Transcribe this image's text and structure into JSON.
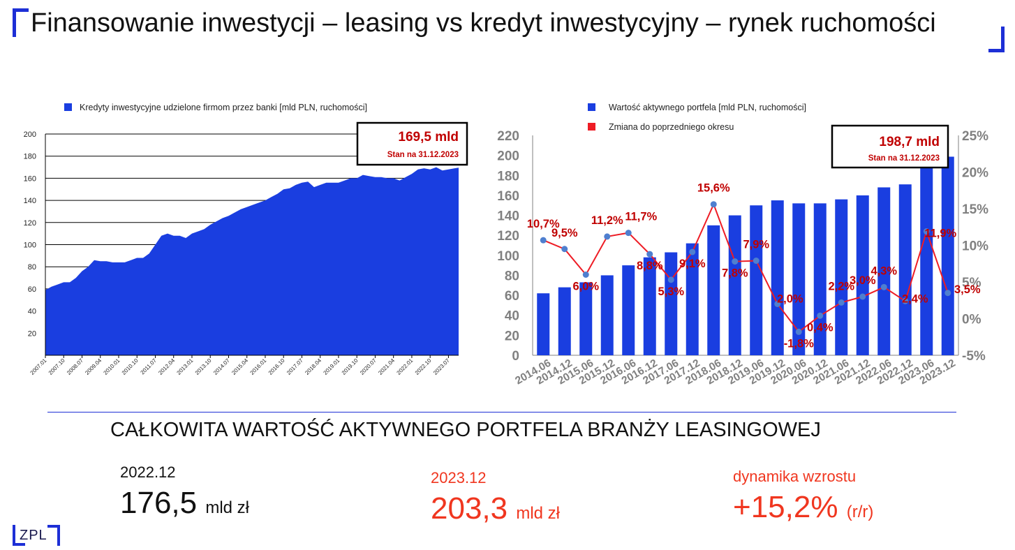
{
  "page": {
    "title": "Finansowanie inwestycji – leasing vs kredyt inwestycyjny – rynek ruchomości",
    "subtitle": "CAŁKOWITA WARTOŚĆ AKTYWNEGO PORTFELA BRANŻY LEASINGOWEJ",
    "logo_text": "ZPL",
    "accent_color": "#1d2fd6"
  },
  "kpis": [
    {
      "period": "2022.12",
      "value": "176,5",
      "unit": "mld zł",
      "color": "#111111"
    },
    {
      "period": "2023.12",
      "value": "203,3",
      "unit": "mld zł",
      "color": "#f0361f"
    },
    {
      "period": "dynamika wzrostu",
      "value": "+15,2%",
      "unit": "(r/r)",
      "color": "#f0361f"
    }
  ],
  "chart_data": [
    {
      "type": "area",
      "legend": [
        "Kredyty inwestycyjne udzielone firmom przez banki [mld PLN, ruchomości]"
      ],
      "callout": {
        "value": "169,5 mld",
        "note": "Stan na 31.12.2023"
      },
      "x_ticks": [
        "2007.01",
        "2007.10",
        "2008.07",
        "2009.04",
        "2010.01",
        "2010.10",
        "2011.07",
        "2012.04",
        "2013.01",
        "2013.10",
        "2014.07",
        "2015.04",
        "2016.01",
        "2016.10",
        "2017.07",
        "2018.04",
        "2019.01",
        "2019.10",
        "2020.07",
        "2021.04",
        "2022.01",
        "2022.10",
        "2023.07"
      ],
      "y_ticks": [
        "20",
        "40",
        "60",
        "80",
        "100",
        "120",
        "140",
        "160",
        "180",
        "200"
      ],
      "ylim": [
        0,
        200
      ],
      "grid": true,
      "color": "#1a3ee0",
      "series": [
        {
          "name": "Kredyty inwestycyjne udzielone firmom przez banki [mld PLN, ruchomości]",
          "x": [
            "2007.01",
            "2007.04",
            "2007.07",
            "2007.10",
            "2008.01",
            "2008.04",
            "2008.07",
            "2008.10",
            "2009.01",
            "2009.04",
            "2009.07",
            "2009.10",
            "2010.01",
            "2010.04",
            "2010.07",
            "2010.10",
            "2011.01",
            "2011.04",
            "2011.07",
            "2011.10",
            "2012.01",
            "2012.04",
            "2012.07",
            "2012.10",
            "2013.01",
            "2013.04",
            "2013.07",
            "2013.10",
            "2014.01",
            "2014.04",
            "2014.07",
            "2014.10",
            "2015.01",
            "2015.04",
            "2015.07",
            "2015.10",
            "2016.01",
            "2016.04",
            "2016.07",
            "2016.10",
            "2017.01",
            "2017.04",
            "2017.07",
            "2017.10",
            "2018.01",
            "2018.04",
            "2018.07",
            "2018.10",
            "2019.01",
            "2019.04",
            "2019.07",
            "2019.10",
            "2020.01",
            "2020.04",
            "2020.07",
            "2020.10",
            "2021.01",
            "2021.04",
            "2021.07",
            "2021.10",
            "2022.01",
            "2022.04",
            "2022.07",
            "2022.10",
            "2023.01",
            "2023.04",
            "2023.07",
            "2023.10",
            "2023.12"
          ],
          "values": [
            59,
            62,
            64,
            66,
            66,
            70,
            76,
            80,
            86,
            85,
            85,
            84,
            84,
            84,
            86,
            88,
            88,
            92,
            100,
            108,
            110,
            108,
            108,
            106,
            110,
            112,
            114,
            118,
            121,
            124,
            126,
            129,
            132,
            134,
            136,
            138,
            140,
            143,
            146,
            150,
            151,
            154,
            156,
            157,
            152,
            154,
            156,
            156,
            156,
            158,
            160,
            160,
            163,
            162,
            161,
            161,
            160,
            160,
            158,
            161,
            164,
            168,
            169,
            168,
            170,
            167,
            168,
            169,
            169.5
          ]
        }
      ]
    },
    {
      "type": "bar",
      "legend": [
        "Wartość aktywnego portfela [mld PLN, ruchomości]",
        "Zmiana do poprzedniego okresu"
      ],
      "callout": {
        "value": "198,7 mld",
        "note": "Stan na 31.12.2023"
      },
      "categories": [
        "2014.06",
        "2014.12",
        "2015.06",
        "2015.12",
        "2016.06",
        "2016.12",
        "2017.06",
        "2017.12",
        "2018.06",
        "2018.12",
        "2019.06",
        "2019.12",
        "2020.06",
        "2020.12",
        "2021.06",
        "2021.12",
        "2022.06",
        "2022.12",
        "2023.06",
        "2023.12"
      ],
      "y_ticks": [
        "0",
        "20",
        "40",
        "60",
        "80",
        "100",
        "120",
        "140",
        "160",
        "180",
        "200",
        "220"
      ],
      "y2_ticks": [
        "-5%",
        "0%",
        "5%",
        "10%",
        "15%",
        "20%",
        "25%"
      ],
      "ylim": [
        0,
        220
      ],
      "y2lim": [
        -5,
        25
      ],
      "bar_color": "#1a3ee0",
      "line_color": "#ee1c25",
      "label_color": "#c00000",
      "series": [
        {
          "name": "Wartość aktywnego portfela [mld PLN, ruchomości]",
          "axis": "left",
          "values": [
            62,
            68,
            73,
            80,
            90,
            98,
            103,
            112,
            130,
            140,
            150,
            155,
            152,
            152,
            156,
            160,
            168,
            171,
            190,
            198.7
          ]
        },
        {
          "name": "Zmiana do poprzedniego okresu",
          "axis": "right",
          "values": [
            10.7,
            9.5,
            6.0,
            11.2,
            11.7,
            8.8,
            5.3,
            9.1,
            15.6,
            7.8,
            7.9,
            2.0,
            -1.8,
            0.4,
            2.2,
            3.0,
            4.3,
            2.4,
            11.9,
            3.5
          ],
          "labels": [
            "10,7%",
            "9,5%",
            "6,0%",
            "11,2%",
            "11,7%",
            "8,8%",
            "5,3%",
            "9,1%",
            "15,6%",
            "7,8%",
            "7,9%",
            "2,0%",
            "-1,8%",
            "0,4%",
            "2,2%",
            "3,0%",
            "4,3%",
            "2,4%",
            "11,9%",
            "3,5%"
          ]
        }
      ]
    }
  ]
}
